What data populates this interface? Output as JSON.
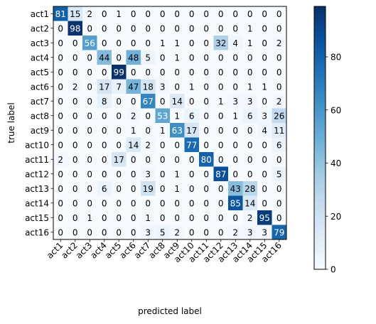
{
  "chart_data": {
    "type": "heatmap",
    "title": "",
    "xlabel": "predicted label",
    "ylabel": "true label",
    "x_categories": [
      "act1",
      "act2",
      "act3",
      "act4",
      "act5",
      "act6",
      "act7",
      "act8",
      "act9",
      "act10",
      "act11",
      "act12",
      "act13",
      "act14",
      "act15",
      "act16"
    ],
    "y_categories": [
      "act1",
      "act2",
      "act3",
      "act4",
      "act5",
      "act6",
      "act7",
      "act8",
      "act9",
      "act10",
      "act11",
      "act12",
      "act13",
      "act14",
      "act15",
      "act16"
    ],
    "values": [
      [
        81,
        15,
        2,
        0,
        1,
        0,
        0,
        0,
        0,
        0,
        0,
        0,
        0,
        0,
        0,
        0
      ],
      [
        0,
        98,
        0,
        0,
        0,
        0,
        0,
        0,
        0,
        0,
        0,
        0,
        0,
        1,
        0,
        0
      ],
      [
        0,
        0,
        56,
        0,
        0,
        0,
        0,
        1,
        1,
        0,
        0,
        32,
        4,
        1,
        0,
        2
      ],
      [
        0,
        0,
        0,
        44,
        0,
        48,
        5,
        0,
        1,
        0,
        0,
        0,
        0,
        0,
        0,
        0
      ],
      [
        0,
        0,
        0,
        0,
        99,
        0,
        0,
        0,
        0,
        0,
        0,
        0,
        0,
        0,
        0,
        0
      ],
      [
        0,
        2,
        0,
        17,
        7,
        47,
        18,
        3,
        0,
        1,
        0,
        0,
        0,
        1,
        1,
        0
      ],
      [
        0,
        0,
        0,
        8,
        0,
        0,
        67,
        0,
        14,
        0,
        0,
        1,
        3,
        3,
        0,
        2
      ],
      [
        0,
        0,
        0,
        0,
        0,
        2,
        0,
        53,
        1,
        6,
        0,
        0,
        1,
        6,
        3,
        26
      ],
      [
        0,
        0,
        0,
        0,
        0,
        1,
        0,
        1,
        63,
        17,
        0,
        0,
        0,
        0,
        4,
        11
      ],
      [
        0,
        0,
        0,
        0,
        0,
        14,
        2,
        0,
        0,
        77,
        0,
        0,
        0,
        0,
        0,
        6
      ],
      [
        2,
        0,
        0,
        0,
        17,
        0,
        0,
        0,
        0,
        0,
        80,
        0,
        0,
        0,
        0,
        0
      ],
      [
        0,
        0,
        0,
        0,
        0,
        0,
        3,
        0,
        1,
        0,
        0,
        87,
        0,
        0,
        0,
        5
      ],
      [
        0,
        0,
        0,
        6,
        0,
        0,
        19,
        0,
        1,
        0,
        0,
        0,
        43,
        28,
        0,
        0
      ],
      [
        0,
        0,
        0,
        0,
        0,
        0,
        0,
        0,
        0,
        0,
        0,
        0,
        85,
        14,
        0,
        0
      ],
      [
        0,
        0,
        1,
        0,
        0,
        0,
        1,
        0,
        0,
        0,
        0,
        0,
        0,
        2,
        95,
        0
      ],
      [
        0,
        0,
        0,
        0,
        0,
        0,
        3,
        5,
        2,
        0,
        0,
        0,
        2,
        3,
        3,
        79
      ]
    ],
    "colormap": "Blues",
    "vmin": 0,
    "vmax": 99,
    "colorbar_ticks": [
      0,
      20,
      40,
      60,
      80
    ],
    "grid": false
  }
}
